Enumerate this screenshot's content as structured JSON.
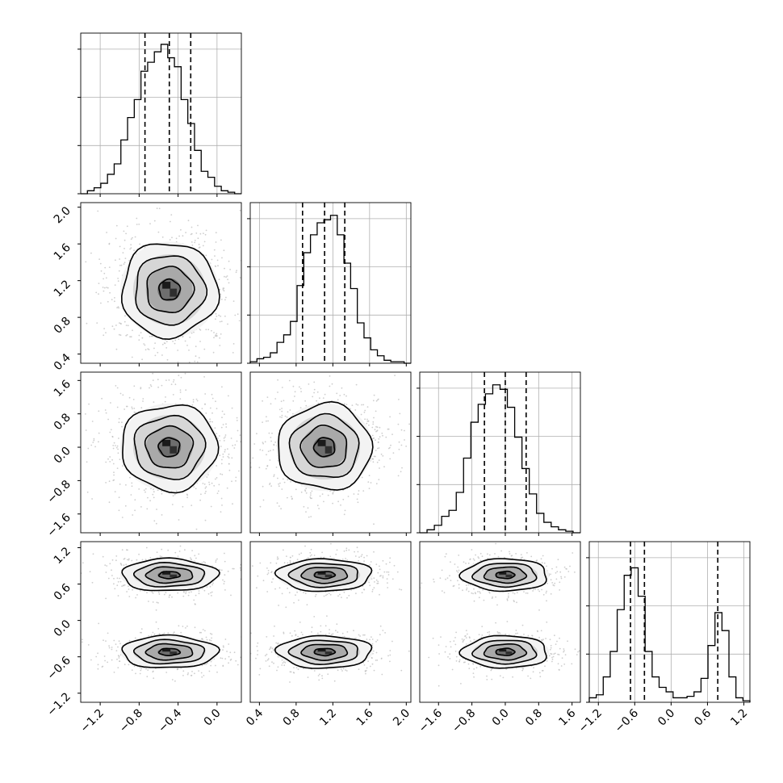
{
  "chart_data": {
    "type": "corner",
    "grid": true,
    "params": [
      {
        "range": [
          -1.4,
          0.25
        ],
        "ticks": [
          -1.2,
          -0.8,
          -0.4,
          0.0
        ],
        "tick_labels": [
          "−1.2",
          "−0.8",
          "−0.4",
          "0.0"
        ],
        "quantiles": [
          -0.74,
          -0.49,
          -0.27
        ],
        "hist_edges": [
          -1.4,
          -1.2,
          0.2
        ],
        "hist": [
          0.0,
          0.02,
          0.04,
          0.07,
          0.13,
          0.2,
          0.36,
          0.51,
          0.63,
          0.82,
          0.88,
          0.95,
          1.0,
          0.91,
          0.85,
          0.63,
          0.47,
          0.29,
          0.15,
          0.11,
          0.05,
          0.02,
          0.01,
          0.0
        ]
      },
      {
        "range": [
          0.3,
          2.05
        ],
        "ticks": [
          0.4,
          0.8,
          1.2,
          1.6,
          2.0
        ],
        "tick_labels": [
          "0.4",
          "0.8",
          "1.2",
          "1.6",
          "2.0"
        ],
        "quantiles": [
          0.87,
          1.11,
          1.33
        ],
        "hist": [
          0.01,
          0.03,
          0.04,
          0.07,
          0.14,
          0.19,
          0.28,
          0.52,
          0.74,
          0.86,
          0.94,
          0.96,
          0.99,
          0.86,
          0.67,
          0.5,
          0.27,
          0.17,
          0.09,
          0.05,
          0.02,
          0.01,
          0.01,
          0.0
        ]
      },
      {
        "range": [
          -2.05,
          1.8
        ],
        "ticks": [
          -1.6,
          -0.8,
          0.0,
          0.8,
          1.6
        ],
        "tick_labels": [
          "−1.6",
          "−0.8",
          "0.0",
          "0.8",
          "1.6"
        ],
        "quantiles": [
          -0.5,
          0.0,
          0.5
        ],
        "hist": [
          0.0,
          0.02,
          0.05,
          0.11,
          0.15,
          0.27,
          0.5,
          0.74,
          0.86,
          0.93,
          0.99,
          0.96,
          0.84,
          0.64,
          0.43,
          0.26,
          0.13,
          0.07,
          0.04,
          0.02,
          0.01,
          0.0
        ]
      },
      {
        "range": [
          -1.35,
          1.3
        ],
        "ticks": [
          -1.2,
          -0.6,
          0.0,
          0.6,
          1.2
        ],
        "tick_labels": [
          "−1.2",
          "−0.6",
          "0.0",
          "0.6",
          "1.2"
        ],
        "quantiles": [
          -0.67,
          -0.44,
          0.77
        ],
        "hist": [
          0.03,
          0.05,
          0.17,
          0.34,
          0.62,
          0.85,
          0.9,
          0.71,
          0.34,
          0.17,
          0.1,
          0.07,
          0.03,
          0.03,
          0.04,
          0.07,
          0.16,
          0.38,
          0.6,
          0.48,
          0.17,
          0.03,
          0.01
        ]
      }
    ],
    "joint": [
      {
        "i": 1,
        "j": 0,
        "means": [
          [
            -0.49,
            1.1
          ]
        ],
        "sd": [
          0.24,
          0.25
        ]
      },
      {
        "i": 2,
        "j": 0,
        "means": [
          [
            -0.49,
            0.0
          ]
        ],
        "sd": [
          0.24,
          0.5
        ]
      },
      {
        "i": 2,
        "j": 1,
        "means": [
          [
            1.11,
            0.0
          ]
        ],
        "sd": [
          0.25,
          0.5
        ]
      },
      {
        "i": 3,
        "j": 0,
        "means": [
          [
            -0.49,
            0.75
          ],
          [
            -0.49,
            -0.52
          ]
        ],
        "sd": [
          0.24,
          0.13
        ]
      },
      {
        "i": 3,
        "j": 1,
        "means": [
          [
            1.11,
            0.75
          ],
          [
            1.11,
            -0.52
          ]
        ],
        "sd": [
          0.25,
          0.13
        ]
      },
      {
        "i": 3,
        "j": 2,
        "means": [
          [
            0.0,
            0.75
          ],
          [
            0.0,
            -0.52
          ]
        ],
        "sd": [
          0.5,
          0.13
        ]
      }
    ],
    "quantile_levels": [
      0.16,
      0.5,
      0.84
    ],
    "colors": {
      "line": "#000000",
      "points": "#bdbdbd",
      "grid": "#b0b0b0"
    }
  }
}
